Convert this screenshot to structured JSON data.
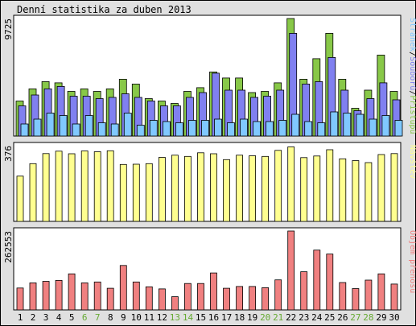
{
  "title": "Denní statistika za duben 2013",
  "colors": {
    "hits": "#88c848",
    "files": "#8080f0",
    "pages": "#80c8ff",
    "visits": "#ffff90",
    "kbytes": "#f08080",
    "day_weekday": "#000000",
    "day_weekend": "#66aa33",
    "panel_bg": "#ffffff",
    "frame_bg": "#e0e0e0"
  },
  "chart_data": [
    {
      "type": "bar",
      "panel": "top",
      "ymax_label": "9725",
      "ylim": [
        0,
        9725
      ],
      "side_labels": [
        "Stránek",
        "Souborů",
        "Přístupů"
      ],
      "side_separator": "/",
      "categories": [
        "1",
        "2",
        "3",
        "4",
        "5",
        "6",
        "7",
        "8",
        "9",
        "10",
        "11",
        "12",
        "13",
        "14",
        "15",
        "16",
        "17",
        "18",
        "19",
        "20",
        "21",
        "22",
        "23",
        "24",
        "25",
        "26",
        "27",
        "28",
        "29",
        "30"
      ],
      "weekend": [
        6,
        7,
        13,
        14,
        20,
        21,
        27,
        28
      ],
      "series": [
        {
          "name": "Přístupů",
          "color_key": "hits",
          "values": [
            2900,
            3900,
            4500,
            4400,
            3700,
            3900,
            3700,
            3900,
            4700,
            4300,
            3100,
            2900,
            2700,
            3700,
            4000,
            5300,
            4800,
            4800,
            3600,
            3700,
            4400,
            9725,
            4700,
            6400,
            8500,
            4700,
            2300,
            3800,
            6700,
            3700
          ]
        },
        {
          "name": "Souborů",
          "color_key": "files",
          "values": [
            2500,
            3400,
            3900,
            4100,
            3300,
            3300,
            3100,
            3200,
            3500,
            3200,
            2900,
            2500,
            2500,
            3200,
            3600,
            5200,
            3800,
            3800,
            3200,
            3300,
            3800,
            8500,
            4300,
            4500,
            6500,
            3800,
            2100,
            3100,
            4400,
            3000
          ]
        },
        {
          "name": "Stránek",
          "color_key": "pages",
          "values": [
            1000,
            1400,
            1900,
            1700,
            1000,
            1700,
            1100,
            1000,
            1900,
            900,
            1300,
            1200,
            1100,
            1300,
            1300,
            1400,
            1100,
            1400,
            1200,
            1200,
            1300,
            1800,
            1200,
            1100,
            2000,
            1900,
            1800,
            1400,
            1700,
            1300
          ]
        }
      ]
    },
    {
      "type": "bar",
      "panel": "middle",
      "ymax_label": "376",
      "ylim": [
        0,
        376
      ],
      "side_labels": [
        "Návštěv"
      ],
      "series": [
        {
          "name": "Návštěv",
          "color_key": "visits",
          "values": [
            225,
            287,
            337,
            349,
            336,
            350,
            346,
            351,
            283,
            284,
            287,
            318,
            329,
            323,
            341,
            336,
            307,
            329,
            326,
            323,
            353,
            370,
            317,
            325,
            356,
            311,
            302,
            292,
            332,
            337
          ]
        }
      ]
    },
    {
      "type": "bar",
      "panel": "bottom",
      "ymax_label": "262553",
      "ylim": [
        0,
        262553
      ],
      "side_labels": [
        "Objem přenosu"
      ],
      "series": [
        {
          "name": "Objem přenosu",
          "color_key": "kbytes",
          "values": [
            73000,
            90000,
            95000,
            98000,
            120000,
            90000,
            93000,
            72000,
            148000,
            93000,
            77000,
            70000,
            44000,
            88000,
            88000,
            123000,
            72000,
            78000,
            78000,
            74000,
            100000,
            262553,
            127000,
            199000,
            186000,
            91000,
            71000,
            99000,
            120000,
            86000
          ]
        }
      ]
    }
  ]
}
